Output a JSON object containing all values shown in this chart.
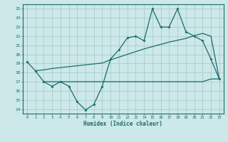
{
  "xlabel": "Humidex (Indice chaleur)",
  "ylabel": "",
  "bg_color": "#cce8e8",
  "grid_color": "#aacccc",
  "line_color": "#1a6b6b",
  "xlim": [
    -0.5,
    23.5
  ],
  "ylim": [
    13.5,
    25.5
  ],
  "xticks": [
    0,
    1,
    2,
    3,
    4,
    5,
    6,
    7,
    8,
    9,
    10,
    11,
    12,
    13,
    14,
    15,
    16,
    17,
    18,
    19,
    20,
    21,
    22,
    23
  ],
  "yticks": [
    14,
    15,
    16,
    17,
    18,
    19,
    20,
    21,
    22,
    23,
    24,
    25
  ],
  "line1_x": [
    0,
    1,
    2,
    3,
    4,
    5,
    6,
    7,
    8,
    9,
    10,
    11,
    12,
    13,
    14,
    15,
    16,
    17,
    18,
    19,
    20,
    21,
    22,
    23
  ],
  "line1_y": [
    19.2,
    18.2,
    17.0,
    16.5,
    17.0,
    16.5,
    14.8,
    13.9,
    14.5,
    16.5,
    19.5,
    20.5,
    21.8,
    22.0,
    21.5,
    25.0,
    23.0,
    23.0,
    25.0,
    22.5,
    22.0,
    21.5,
    19.5,
    17.3
  ],
  "line2_x": [
    1,
    2,
    3,
    4,
    5,
    6,
    7,
    8,
    9,
    10,
    11,
    12,
    13,
    14,
    15,
    16,
    17,
    18,
    19,
    20,
    21,
    22,
    23
  ],
  "line2_y": [
    18.2,
    18.3,
    18.45,
    18.55,
    18.65,
    18.75,
    18.85,
    18.95,
    19.05,
    19.4,
    19.7,
    20.0,
    20.3,
    20.6,
    20.85,
    21.1,
    21.35,
    21.55,
    21.75,
    22.05,
    22.3,
    22.0,
    17.3
  ],
  "line3_x": [
    2,
    3,
    4,
    5,
    6,
    7,
    8,
    9,
    10,
    11,
    12,
    13,
    14,
    15,
    16,
    17,
    18,
    19,
    20,
    21,
    22,
    23
  ],
  "line3_y": [
    17.0,
    17.0,
    17.0,
    17.0,
    17.0,
    17.0,
    17.0,
    17.0,
    17.0,
    17.0,
    17.0,
    17.0,
    17.0,
    17.0,
    17.0,
    17.0,
    17.0,
    17.0,
    17.0,
    17.0,
    17.3,
    17.3
  ]
}
